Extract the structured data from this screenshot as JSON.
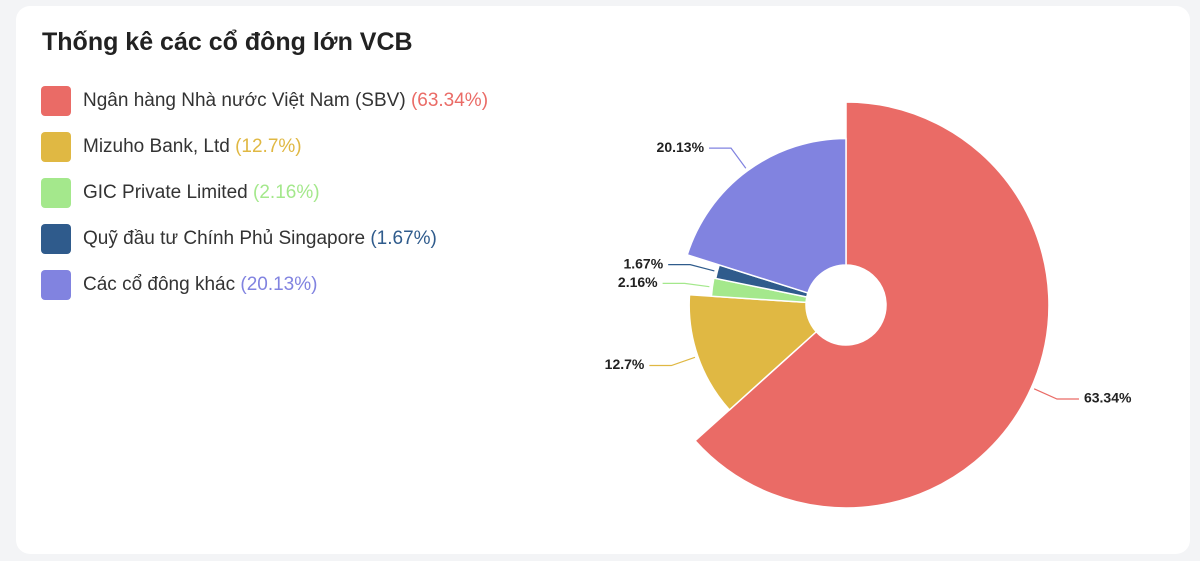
{
  "chart_data": {
    "type": "pie",
    "title": "Thống kê các cổ đông lớn VCB",
    "rose": true,
    "series": [
      {
        "name": "Ngân hàng Nhà nước Việt Nam (SBV)",
        "color": "#ea6b66",
        "values": [
          63.34
        ],
        "value_labels": [
          "63.34%"
        ],
        "legend_label": "(63.34%)"
      },
      {
        "name": "Mizuho Bank, Ltd",
        "color": "#e0b843",
        "values": [
          12.7
        ],
        "value_labels": [
          "12.7%"
        ],
        "legend_label": "(12.7%)"
      },
      {
        "name": "GIC Private Limited",
        "color": "#a4e88c",
        "values": [
          2.16
        ],
        "value_labels": [
          "2.16%"
        ],
        "legend_label": "(2.16%)"
      },
      {
        "name": "Quỹ đầu tư Chính Phủ Singapore",
        "color": "#2f5b8c",
        "values": [
          1.67
        ],
        "value_labels": [
          "1.67%"
        ],
        "legend_label": "(1.67%)"
      },
      {
        "name": "Các cổ đông khác",
        "color": "#8183e0",
        "values": [
          20.13
        ],
        "value_labels": [
          "20.13%"
        ],
        "legend_label": "(20.13%)"
      }
    ]
  }
}
